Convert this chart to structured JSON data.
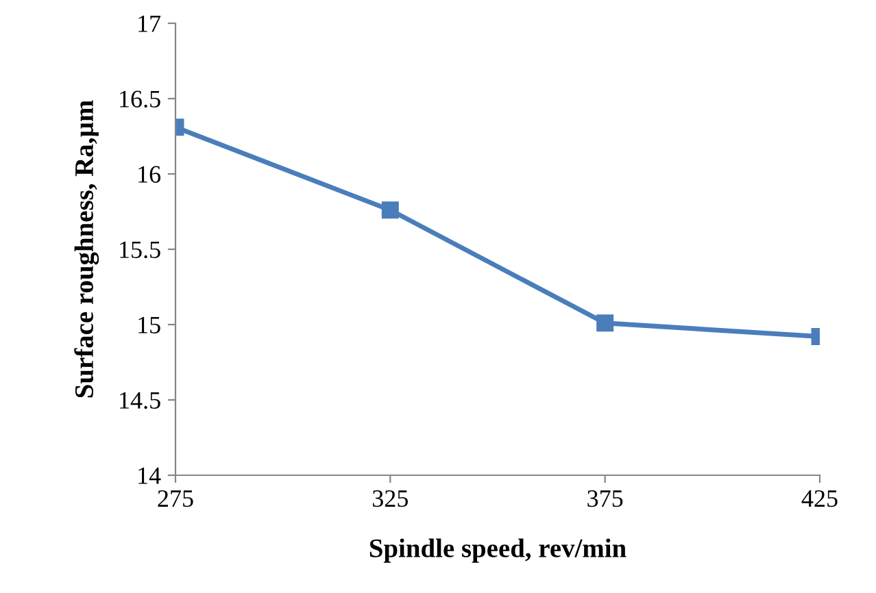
{
  "chart_data": {
    "type": "line",
    "xlabel": "Spindle speed, rev/min",
    "ylabel": "Surface roughness, Ra,µm",
    "x": [
      275,
      325,
      375,
      425
    ],
    "series": [
      {
        "color": "#4a7ebb",
        "values": [
          16.31,
          15.76,
          15.01,
          14.92
        ]
      }
    ],
    "xlim": [
      275,
      425
    ],
    "xticks": [
      275,
      325,
      375,
      425
    ],
    "ylim": [
      14,
      17
    ],
    "yticks": [
      14,
      14.5,
      15,
      15.5,
      16,
      16.5,
      17
    ],
    "marker": "square",
    "line_style": "solid",
    "grid": false,
    "legend": false
  }
}
